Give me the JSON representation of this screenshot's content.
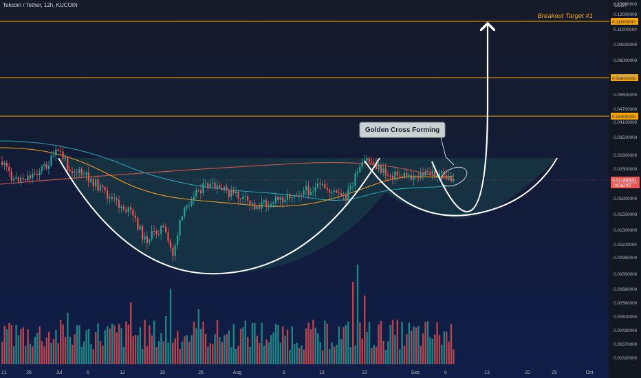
{
  "title": "Tekcoin / Tether, 12h, KUCOIN",
  "currency": "USDT",
  "colors": {
    "up": "#26a69a",
    "down": "#ef5350",
    "level": "#f7a600",
    "ma_orange": "#f59c1a",
    "ma_red": "#d9534f",
    "ma_teal": "#2aa3b5",
    "annotation": "#ffffff",
    "target_text": "#f7a600",
    "price_badge": "#ef5350"
  },
  "annotations": {
    "golden_cross": "Golden Cross Forming",
    "breakout_target": "Breakout Target #1"
  },
  "chart_data": {
    "type": "candlestick",
    "x_ticks": [
      "21",
      "26",
      "Jul",
      "6",
      "12",
      "19",
      "26",
      "Aug",
      "9",
      "16",
      "23",
      "Sep",
      "6",
      "13",
      "20",
      "25",
      "Oct"
    ],
    "y_ticks": [
      "0.15000000",
      "0.13000000",
      "0.11000000",
      "0.09500000",
      "0.08000000",
      "0.06500000",
      "0.05500000",
      "0.04700000",
      "0.04100000",
      "0.03500000",
      "0.02900000",
      "0.02500000",
      "0.02169800",
      "0.01800000",
      "0.01500000",
      "0.01300000",
      "0.01100000",
      "0.00950000",
      "0.00800000",
      "0.00680000",
      "0.00580000",
      "0.00500000",
      "0.00430000",
      "0.00370000",
      "0.00320000"
    ],
    "log_scale": true,
    "current_price": "0.02169800",
    "countdown": "09:38:40",
    "horizontal_levels": [
      0.118,
      0.066,
      0.043
    ],
    "level_badges": [
      "0.11800000",
      "0.06600000",
      "0.04300000"
    ],
    "patterns": [
      "cup and handle",
      "rising breakout arrow"
    ],
    "grid": false
  }
}
